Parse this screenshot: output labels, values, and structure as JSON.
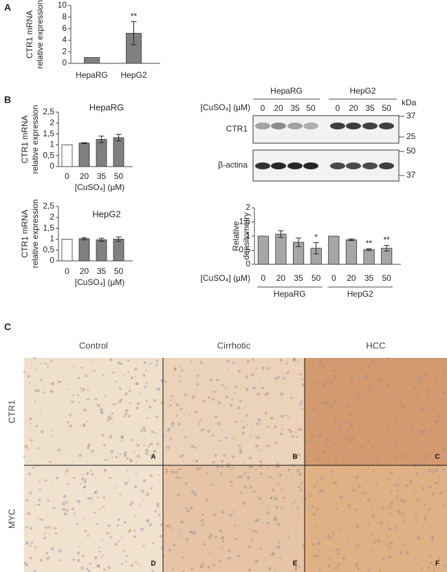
{
  "panel_labels": [
    "A",
    "B",
    "C"
  ],
  "chart_data": [
    {
      "type": "bar",
      "ylabel": [
        "CTR1 mRNA",
        "relative expression"
      ],
      "categories": [
        "HepaRG",
        "HepG2"
      ],
      "values": [
        1,
        5.2
      ],
      "errors": [
        null,
        2
      ],
      "annotations": [
        null,
        "**"
      ],
      "colors": [
        "#808080",
        "#808080"
      ],
      "ylim": [
        0,
        10
      ],
      "yticks": [
        0,
        2,
        4,
        6,
        8,
        10
      ]
    },
    {
      "type": "bar",
      "title": "HepaRG",
      "ylabel": [
        "CTR1 mRNA",
        "relative expression"
      ],
      "xlabel": "[CuSO₄] (µM)",
      "categories": [
        "0",
        "20",
        "35",
        "50"
      ],
      "values": [
        1,
        1.08,
        1.25,
        1.33
      ],
      "errors": [
        null,
        0.02,
        0.15,
        0.15
      ],
      "colors": [
        "#ffffff",
        "#808080",
        "#808080",
        "#808080"
      ],
      "ylim": [
        0,
        2.5
      ],
      "yticks": [
        0,
        {
          "value": 0.5,
          "label": "0,5"
        },
        1,
        {
          "value": 1.5,
          "label": "1,5"
        },
        2,
        {
          "value": 2.5,
          "label": "2,5"
        }
      ]
    },
    {
      "type": "bar",
      "title": "HepG2",
      "ylabel": [
        "CTR1 mRNA",
        "relative expression"
      ],
      "xlabel": "[CuSO₄] (µM)",
      "categories": [
        "0",
        "20",
        "35",
        "50"
      ],
      "values": [
        1,
        1.02,
        0.97,
        1.0
      ],
      "errors": [
        null,
        0.05,
        0.07,
        0.1
      ],
      "colors": [
        "#ffffff",
        "#808080",
        "#808080",
        "#808080"
      ],
      "ylim": [
        0,
        2.5
      ],
      "yticks": [
        0,
        {
          "value": 0.5,
          "label": "0,5"
        },
        1,
        {
          "value": 1.5,
          "label": "1,5"
        },
        2,
        {
          "value": 2.5,
          "label": "2,5"
        }
      ]
    },
    {
      "type": "bar",
      "ylabel": [
        "Relative",
        "densitometry"
      ],
      "xlabel": "[CuSO₄] (µM)",
      "groups": [
        "HepaRG",
        "HepG2"
      ],
      "categories": [
        "0",
        "20",
        "35",
        "50",
        "0",
        "20",
        "35",
        "50"
      ],
      "values": [
        1,
        1.07,
        0.78,
        0.57,
        1.0,
        0.87,
        0.52,
        0.57
      ],
      "errors": [
        null,
        0.12,
        0.15,
        0.2,
        null,
        0.03,
        0.03,
        0.1
      ],
      "annotations": [
        null,
        null,
        null,
        "*",
        null,
        null,
        "**",
        "**"
      ],
      "colors": [
        "#a6a6a6",
        "#a6a6a6",
        "#a6a6a6",
        "#a6a6a6",
        "#a6a6a6",
        "#a6a6a6",
        "#a6a6a6",
        "#a6a6a6"
      ],
      "ylim": [
        0,
        2
      ],
      "yticks": [
        0,
        {
          "value": 0.5,
          "label": "0,5"
        },
        1,
        {
          "value": 1.5,
          "label": "1,5"
        },
        2
      ]
    }
  ],
  "blot": {
    "groups": [
      "HepaRG",
      "HepG2"
    ],
    "unit": "kDa",
    "concentration_label": "[CuSO₄] (µM)",
    "lanes": [
      "0",
      "20",
      "35",
      "50",
      "0",
      "20",
      "35",
      "50"
    ],
    "rows": [
      {
        "name": "CTR1",
        "markers": [
          37,
          25
        ]
      },
      {
        "name": "β-actina",
        "markers": [
          50,
          37
        ]
      }
    ]
  },
  "histology": {
    "columns": [
      "Control",
      "Cirrhotic",
      "HCC"
    ],
    "rows": [
      "CTR1",
      "MYC"
    ],
    "tiles": [
      "A",
      "B",
      "C",
      "D",
      "E",
      "F"
    ]
  }
}
